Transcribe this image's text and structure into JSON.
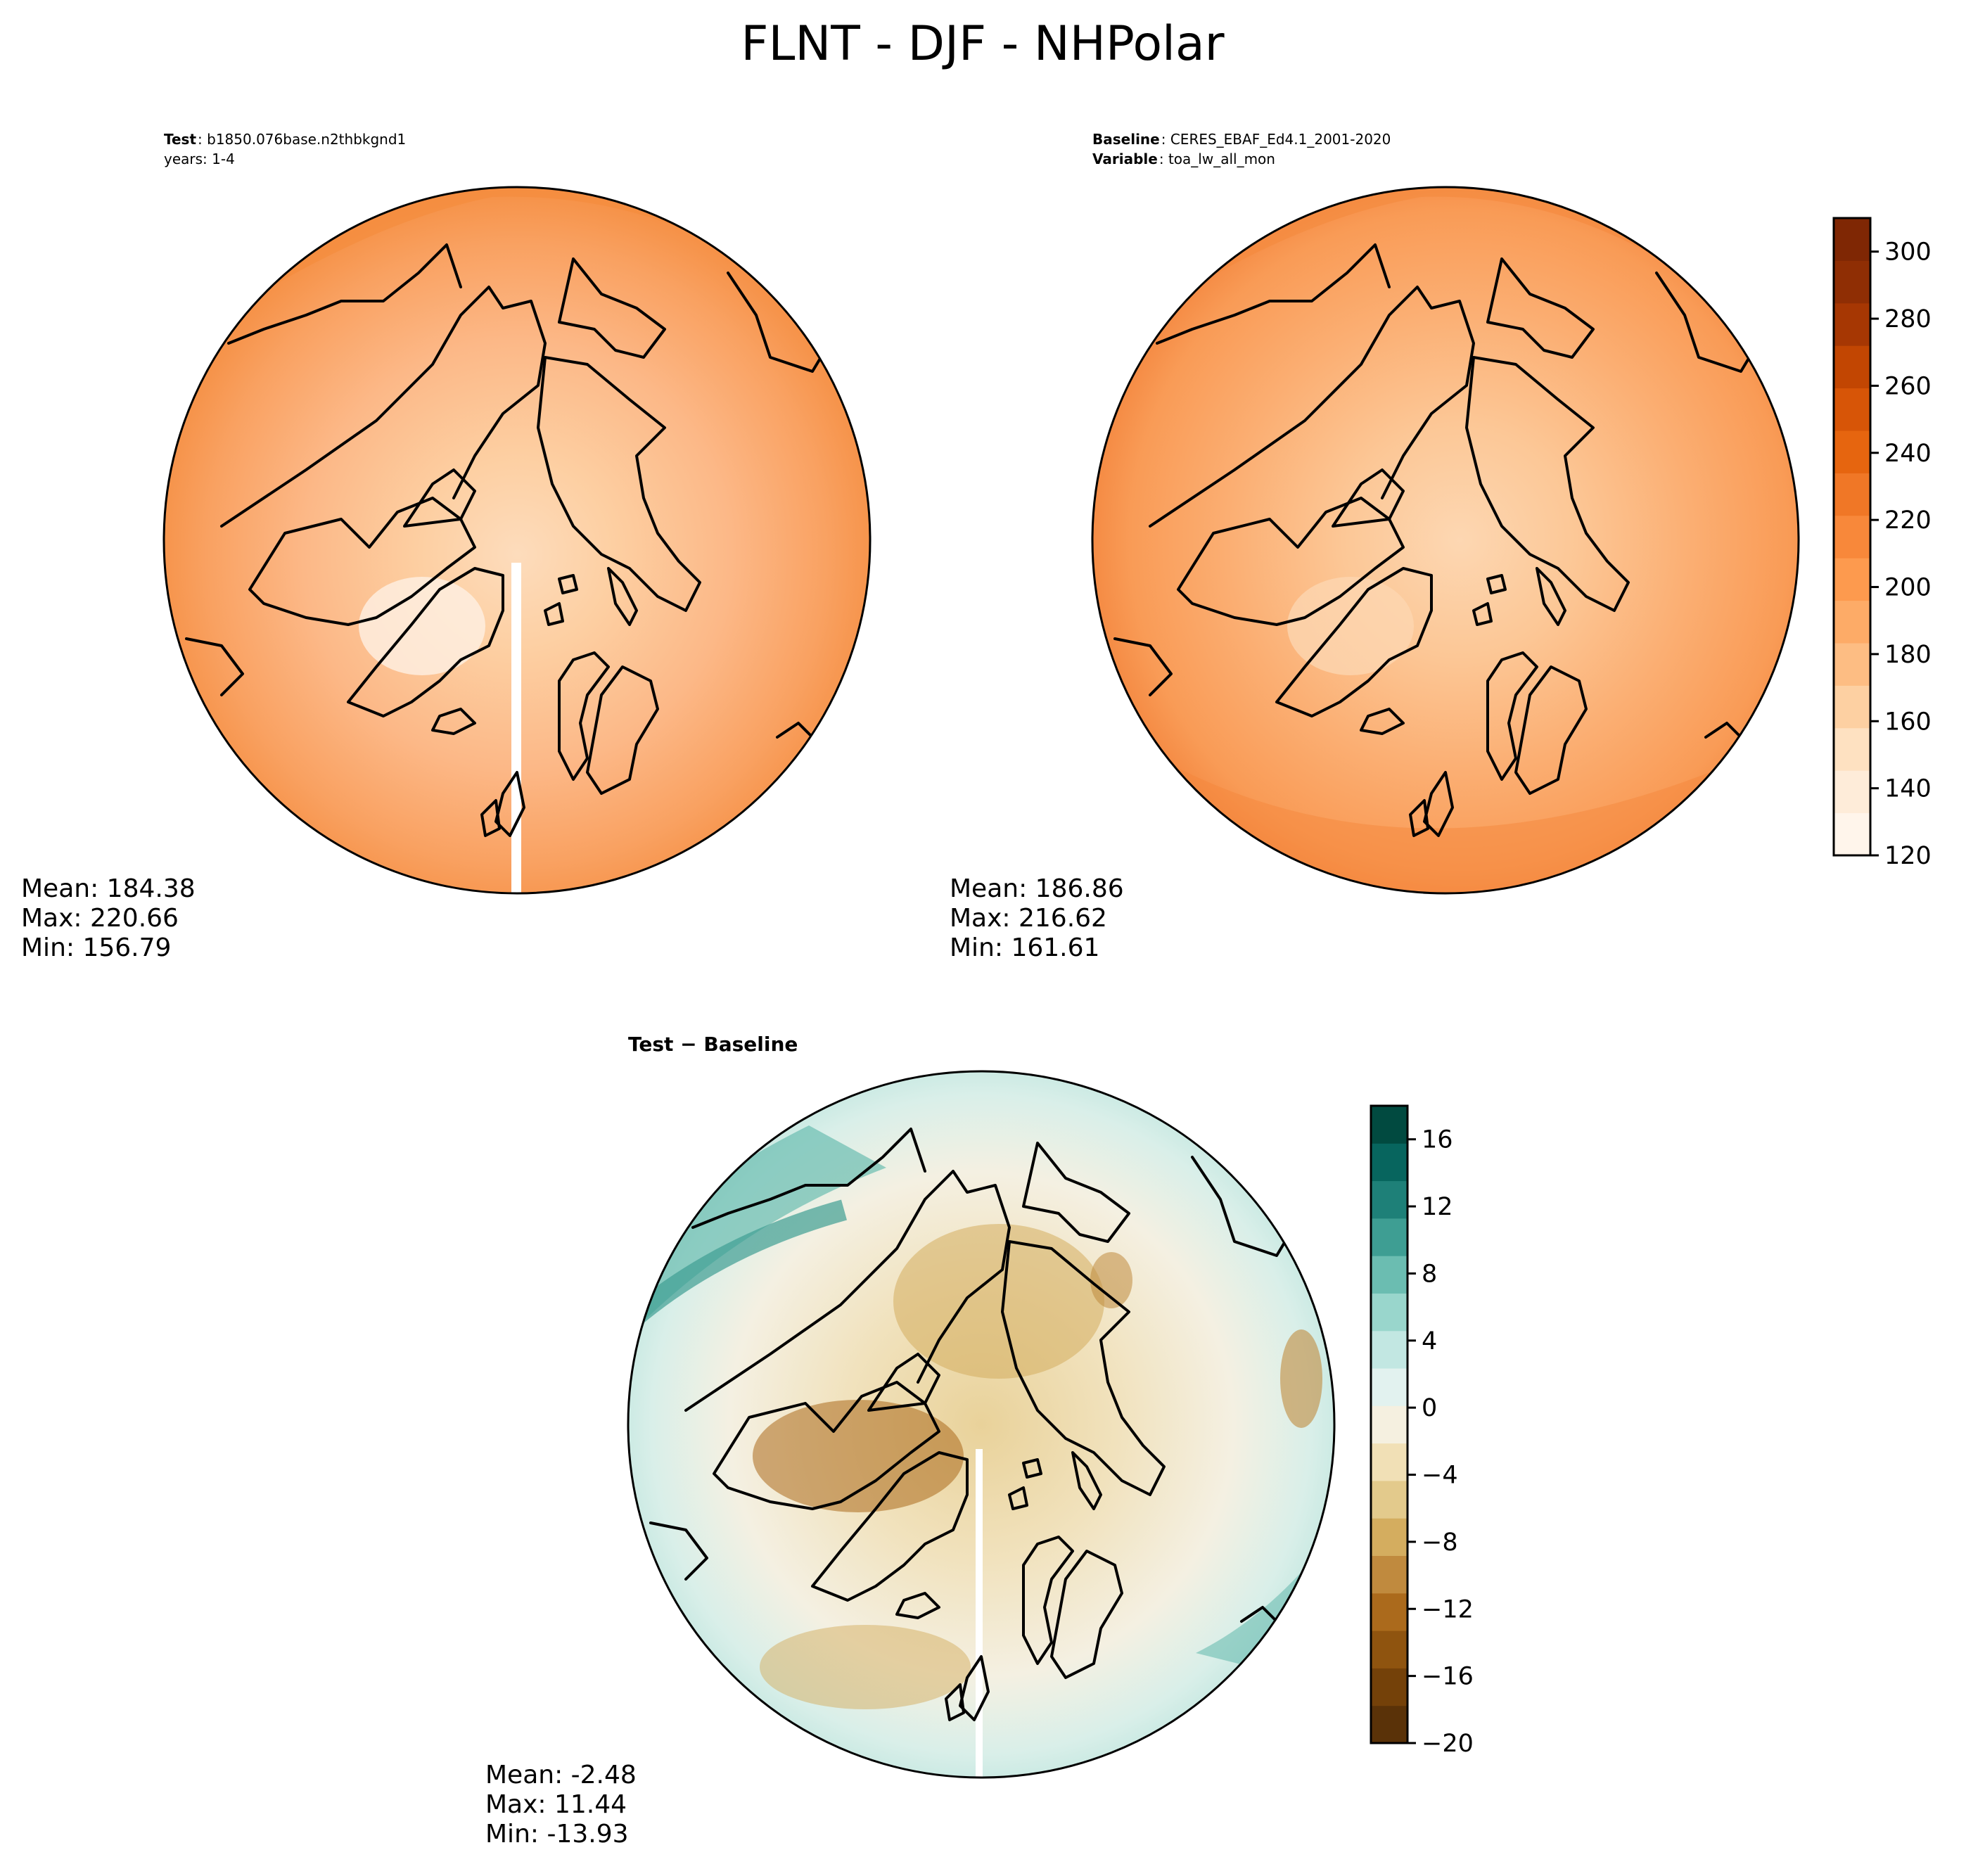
{
  "title": "FLNT - DJF - NHPolar",
  "panels": {
    "test": {
      "header_label_1": "Test",
      "header_value_1": "b1850.076base.n2thbkgnd1",
      "header_line_2": "years: 1-4",
      "stats": {
        "mean": "Mean: 184.38",
        "max": "Max: 220.66",
        "min": "Min: 156.79"
      }
    },
    "baseline": {
      "header_label_1": "Baseline",
      "header_value_1": "CERES_EBAF_Ed4.1_2001-2020",
      "header_label_2": "Variable",
      "header_value_2": "toa_lw_all_mon",
      "stats": {
        "mean": "Mean: 186.86",
        "max": "Max: 216.62",
        "min": "Min: 161.61"
      }
    },
    "difference": {
      "title": "Test − Baseline",
      "stats": {
        "mean": "Mean: -2.48",
        "max": "Max: 11.44",
        "min": "Min: -13.93"
      }
    }
  },
  "colorbars": {
    "main": {
      "ticks": [
        "300",
        "280",
        "260",
        "240",
        "220",
        "200",
        "180",
        "160",
        "140",
        "120"
      ],
      "range": [
        120,
        310
      ],
      "colors": [
        "#fff5eb",
        "#feecd9",
        "#fee1c1",
        "#fdd0a2",
        "#fdbd83",
        "#fdab67",
        "#fd9a4e",
        "#f8883a",
        "#f07726",
        "#e6650f",
        "#d75507",
        "#c24602",
        "#a63703",
        "#8f2e04",
        "#7f2704"
      ]
    },
    "diff": {
      "ticks": [
        "16",
        "12",
        "8",
        "4",
        "0",
        "−4",
        "−8",
        "−12",
        "−16",
        "−20"
      ],
      "range": [
        -20,
        18
      ],
      "colors": [
        "#5a3208",
        "#744109",
        "#8f540f",
        "#ab6a1c",
        "#c08a3e",
        "#d4ad5f",
        "#e3ca8c",
        "#f1e0b6",
        "#f5f0e0",
        "#e2f2ef",
        "#c2e7e2",
        "#99d6cc",
        "#6bbdb1",
        "#3e9e93",
        "#1e8078",
        "#07655e",
        "#014a40"
      ]
    }
  },
  "colors": {
    "land_outline": "#000000",
    "ocean_test": "#f9a96b",
    "ocean_base": "#f8a465"
  }
}
